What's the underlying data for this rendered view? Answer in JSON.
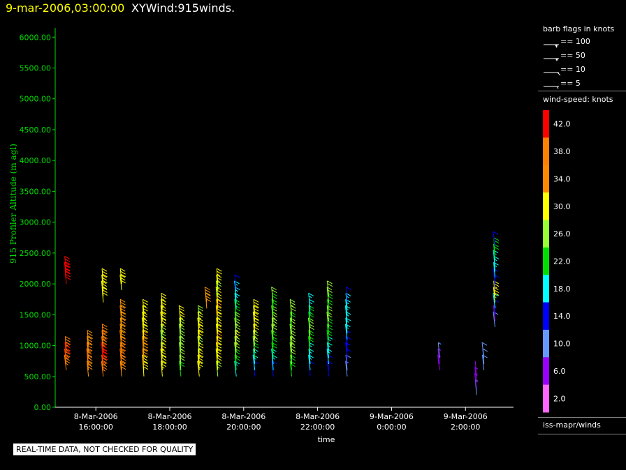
{
  "header": {
    "time": "9-mar-2006,03:00:00",
    "name": "XYWind:915winds."
  },
  "quality_notice": "REAL-TIME DATA, NOT CHECKED FOR QUALITY",
  "legend": {
    "barb_title": "barb flags in knots",
    "barbs": [
      "== 100",
      "== 50",
      "== 10",
      "== 5"
    ],
    "speed_title": "wind-speed: knots",
    "source": "iss-mapr/winds"
  },
  "colors": {
    "axis_y": "#00dd00",
    "axis_x": "#ffffff",
    "title_time": "#ffff00"
  },
  "chart_data": {
    "type": "scatter",
    "title": "",
    "ylabel": "915 Profiler Altitude (m agl)",
    "xlabel": "time",
    "ylim": [
      0,
      6200
    ],
    "y_ticks": [
      "0.00",
      "500.00",
      "1000.00",
      "1500.00",
      "2000.00",
      "2500.00",
      "3000.00",
      "3500.00",
      "4000.00",
      "4500.00",
      "5000.00",
      "5500.00",
      "6000.00"
    ],
    "x_ticks": [
      {
        "date": "8-Mar-2006",
        "time": "16:00:00"
      },
      {
        "date": "8-Mar-2006",
        "time": "18:00:00"
      },
      {
        "date": "8-Mar-2006",
        "time": "20:00:00"
      },
      {
        "date": "8-Mar-2006",
        "time": "22:00:00"
      },
      {
        "date": "9-Mar-2006",
        "time": "0:00:00"
      },
      {
        "date": "9-Mar-2006",
        "time": "2:00:00"
      }
    ],
    "x_range_hours": [
      14.9,
      27.3
    ],
    "colorbar": {
      "labels": [
        "42.0",
        "38.0",
        "34.0",
        "30.0",
        "26.0",
        "22.0",
        "18.0",
        "14.0",
        "10.0",
        "6.0",
        "2.0"
      ],
      "colors": [
        "#ff0000",
        "#ff8000",
        "#ff8800",
        "#ffff00",
        "#99ff33",
        "#00e000",
        "#00ffff",
        "#0000ff",
        "#6699ff",
        "#9900ff",
        "#ff66ff"
      ]
    },
    "series": [
      {
        "time_hours": 15.2,
        "heights": [
          600,
          700,
          800,
          900
        ],
        "speeds": [
          38,
          38,
          40,
          38
        ]
      },
      {
        "time_hours": 15.2,
        "heights": [
          2000,
          2100,
          2200
        ],
        "speeds": [
          42,
          42,
          42
        ]
      },
      {
        "time_hours": 15.8,
        "heights": [
          500,
          600,
          700,
          800,
          900,
          1000
        ],
        "speeds": [
          34,
          36,
          38,
          36,
          34,
          34
        ]
      },
      {
        "time_hours": 16.2,
        "heights": [
          500,
          600,
          700,
          800,
          900,
          1000,
          1100
        ],
        "speeds": [
          36,
          38,
          40,
          40,
          38,
          36,
          36
        ]
      },
      {
        "time_hours": 16.2,
        "heights": [
          1700,
          1800,
          1900,
          2000
        ],
        "speeds": [
          30,
          30,
          30,
          30
        ]
      },
      {
        "time_hours": 16.7,
        "heights": [
          500,
          600,
          700,
          800,
          900,
          1000,
          1100,
          1200,
          1300,
          1400,
          1500
        ],
        "speeds": [
          34,
          36,
          38,
          38,
          36,
          34,
          34,
          32,
          32,
          34,
          34
        ]
      },
      {
        "time_hours": 16.7,
        "heights": [
          1900,
          2000
        ],
        "speeds": [
          30,
          30
        ]
      },
      {
        "time_hours": 17.3,
        "heights": [
          500,
          600,
          700,
          800,
          900,
          1000,
          1100,
          1200,
          1300,
          1400,
          1500
        ],
        "speeds": [
          30,
          30,
          32,
          32,
          34,
          32,
          30,
          30,
          28,
          28,
          28
        ]
      },
      {
        "time_hours": 17.8,
        "heights": [
          500,
          600,
          700,
          800,
          900,
          1000,
          1100,
          1200,
          1300,
          1400,
          1500,
          1600
        ],
        "speeds": [
          28,
          30,
          30,
          28,
          28,
          26,
          26,
          28,
          30,
          30,
          28,
          28
        ]
      },
      {
        "time_hours": 18.3,
        "heights": [
          500,
          600,
          700,
          800,
          900,
          1000,
          1100,
          1200,
          1300,
          1400
        ],
        "speeds": [
          22,
          24,
          24,
          26,
          26,
          26,
          24,
          26,
          28,
          28
        ]
      },
      {
        "time_hours": 18.8,
        "heights": [
          500,
          600,
          700,
          800,
          900,
          1000,
          1100,
          1200,
          1300,
          1400
        ],
        "speeds": [
          28,
          30,
          30,
          28,
          26,
          28,
          30,
          30,
          28,
          26
        ]
      },
      {
        "time_hours": 19.0,
        "heights": [
          1600,
          1700
        ],
        "speeds": [
          34,
          34
        ]
      },
      {
        "time_hours": 19.3,
        "heights": [
          500,
          600,
          700,
          800,
          900,
          1000,
          1100,
          1200,
          1300,
          1400,
          1500,
          1600,
          1700,
          1800,
          1900,
          2000
        ],
        "speeds": [
          26,
          28,
          28,
          30,
          30,
          32,
          30,
          30,
          28,
          30,
          32,
          30,
          28,
          26,
          28,
          28
        ]
      },
      {
        "time_hours": 19.8,
        "heights": [
          500,
          600,
          700,
          800,
          900,
          1000,
          1100,
          1200,
          1300,
          1400,
          1500,
          1600,
          1700,
          1800,
          1900
        ],
        "speeds": [
          18,
          22,
          22,
          24,
          26,
          28,
          26,
          26,
          24,
          22,
          20,
          18,
          16,
          16,
          14
        ]
      },
      {
        "time_hours": 20.3,
        "heights": [
          500,
          600,
          700,
          800,
          900,
          1000,
          1100,
          1200,
          1300,
          1400,
          1500
        ],
        "speeds": [
          14,
          16,
          18,
          22,
          24,
          26,
          28,
          28,
          30,
          30,
          30
        ]
      },
      {
        "time_hours": 20.8,
        "heights": [
          500,
          600,
          700,
          800,
          900,
          1000,
          1100,
          1200,
          1300,
          1400,
          1500,
          1600,
          1700
        ],
        "speeds": [
          14,
          16,
          18,
          20,
          22,
          22,
          24,
          26,
          26,
          24,
          22,
          22,
          24
        ]
      },
      {
        "time_hours": 21.3,
        "heights": [
          500,
          600,
          700,
          800,
          900,
          1000,
          1100,
          1200,
          1300,
          1400,
          1500
        ],
        "speeds": [
          20,
          22,
          24,
          24,
          26,
          26,
          24,
          24,
          22,
          24,
          26
        ]
      },
      {
        "time_hours": 21.8,
        "heights": [
          500,
          600,
          700,
          800,
          900,
          1000,
          1100,
          1200,
          1300,
          1400,
          1500,
          1600
        ],
        "speeds": [
          14,
          16,
          16,
          18,
          20,
          22,
          24,
          24,
          22,
          20,
          18,
          18
        ]
      },
      {
        "time_hours": 22.3,
        "heights": [
          500,
          600,
          700,
          800,
          900,
          1000,
          1100,
          1200,
          1300,
          1400,
          1500,
          1600,
          1700,
          1800
        ],
        "speeds": [
          14,
          14,
          16,
          18,
          18,
          20,
          22,
          22,
          24,
          24,
          22,
          22,
          24,
          24
        ]
      },
      {
        "time_hours": 22.8,
        "heights": [
          500,
          600,
          700,
          800,
          900,
          1000,
          1100,
          1200,
          1300,
          1400,
          1500,
          1600,
          1700
        ],
        "speeds": [
          8,
          10,
          12,
          14,
          14,
          14,
          16,
          16,
          16,
          18,
          18,
          16,
          14
        ]
      },
      {
        "time_hours": 25.3,
        "heights": [
          600,
          700,
          800
        ],
        "speeds": [
          6,
          6,
          8
        ]
      },
      {
        "time_hours": 26.3,
        "heights": [
          200,
          300,
          400,
          500
        ],
        "speeds": [
          8,
          6,
          6,
          4
        ]
      },
      {
        "time_hours": 26.5,
        "heights": [
          600,
          700,
          800
        ],
        "speeds": [
          10,
          10,
          10
        ]
      },
      {
        "time_hours": 26.8,
        "heights": [
          1300,
          1400,
          1500,
          1600,
          1700,
          1800,
          1900,
          2000,
          2100,
          2200,
          2300,
          2400,
          2500,
          2600
        ],
        "speeds": [
          10,
          6,
          14,
          16,
          30,
          28,
          14,
          14,
          16,
          16,
          18,
          20,
          22,
          14
        ]
      }
    ]
  }
}
